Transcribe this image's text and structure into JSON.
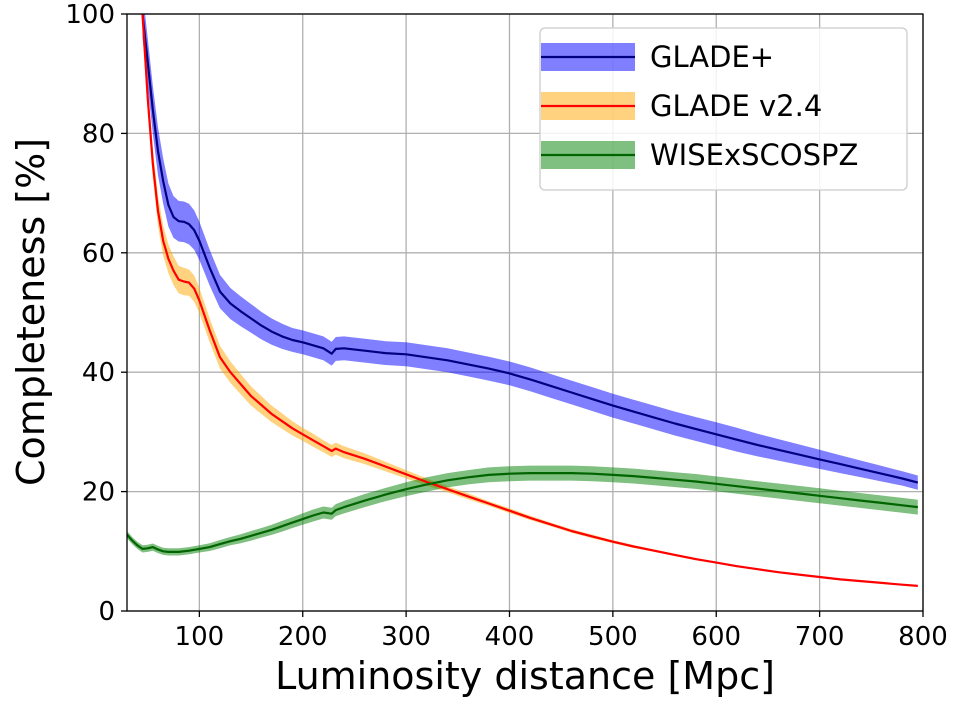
{
  "chart_data": {
    "type": "line",
    "xlabel": "Luminosity distance [Mpc]",
    "ylabel": "Completeness [%]",
    "xlim": [
      30,
      800
    ],
    "ylim": [
      0,
      100
    ],
    "x_ticks": [
      100,
      200,
      300,
      400,
      500,
      600,
      700,
      800
    ],
    "y_ticks": [
      0,
      20,
      40,
      60,
      80,
      100
    ],
    "grid": true,
    "legend_position": "top-right",
    "series": [
      {
        "name": "GLADE+",
        "line_color": "#000080",
        "band_color": "#0000ff",
        "band_opacity": 0.5,
        "x": [
          45,
          50,
          55,
          60,
          65,
          70,
          75,
          80,
          85,
          90,
          95,
          100,
          110,
          120,
          130,
          140,
          150,
          160,
          170,
          180,
          190,
          200,
          210,
          220,
          228,
          232,
          240,
          260,
          280,
          300,
          320,
          340,
          360,
          380,
          400,
          420,
          440,
          460,
          480,
          500,
          520,
          540,
          560,
          580,
          600,
          620,
          640,
          660,
          680,
          700,
          720,
          740,
          760,
          780,
          795
        ],
        "y": [
          100,
          92,
          84,
          77,
          72,
          68,
          66,
          65.3,
          65.2,
          64.8,
          63.8,
          62,
          57.5,
          53.5,
          51.5,
          50.2,
          49,
          47.8,
          46.8,
          46,
          45.4,
          45,
          44.5,
          44,
          43.1,
          43.9,
          44,
          43.6,
          43.2,
          43,
          42.5,
          42,
          41.3,
          40.6,
          39.8,
          38.8,
          37.7,
          36.6,
          35.5,
          34.4,
          33.4,
          32.4,
          31.4,
          30.5,
          29.6,
          28.7,
          27.8,
          27,
          26.2,
          25.4,
          24.6,
          23.8,
          23,
          22.2,
          21.5
        ],
        "band_halfwidth": [
          4,
          4,
          4,
          4,
          3.8,
          3.6,
          3.5,
          3.4,
          3.4,
          3.4,
          3.3,
          3.2,
          3,
          2.8,
          2.6,
          2.5,
          2.4,
          2.3,
          2.2,
          2.1,
          2,
          2,
          2,
          2,
          2,
          2,
          2,
          2,
          2,
          2,
          2,
          2,
          2,
          2,
          2,
          2,
          2,
          2,
          2,
          2,
          2,
          2,
          2,
          2,
          2,
          2,
          1.9,
          1.8,
          1.7,
          1.6,
          1.5,
          1.4,
          1.3,
          1.2,
          1.2
        ]
      },
      {
        "name": "GLADE v2.4",
        "line_color": "#ff0000",
        "band_color": "#ffa500",
        "band_opacity": 0.5,
        "x": [
          45,
          50,
          55,
          60,
          65,
          70,
          75,
          80,
          85,
          90,
          95,
          100,
          110,
          120,
          130,
          140,
          150,
          160,
          170,
          180,
          190,
          200,
          210,
          220,
          228,
          232,
          240,
          260,
          280,
          300,
          320,
          340,
          360,
          380,
          400,
          420,
          440,
          460,
          480,
          500,
          520,
          540,
          560,
          580,
          600,
          620,
          640,
          660,
          680,
          700,
          720,
          740,
          760,
          780,
          795
        ],
        "y": [
          100,
          86,
          75,
          67,
          62,
          59,
          57,
          55.5,
          55.2,
          55,
          54,
          52,
          47,
          42.5,
          40,
          38,
          36,
          34.5,
          33,
          31.8,
          30.6,
          29.6,
          28.6,
          27.6,
          26.8,
          27.2,
          26.6,
          25.5,
          24.2,
          22.9,
          21.6,
          20.4,
          19.2,
          18,
          16.8,
          15.6,
          14.5,
          13.4,
          12.5,
          11.6,
          10.8,
          10.1,
          9.4,
          8.7,
          8.1,
          7.5,
          7,
          6.5,
          6.1,
          5.7,
          5.3,
          5,
          4.7,
          4.4,
          4.2
        ],
        "band_halfwidth": [
          2.5,
          2.5,
          2.5,
          2.5,
          2.5,
          2.4,
          2.4,
          2.3,
          2.3,
          2.2,
          2.2,
          2.1,
          2,
          1.9,
          1.8,
          1.7,
          1.6,
          1.5,
          1.4,
          1.3,
          1.2,
          1.1,
          1.1,
          1,
          1,
          1,
          1,
          0.9,
          0.8,
          0.7,
          0.6,
          0.5,
          0.5,
          0.4,
          0.4,
          0.35,
          0.3,
          0.3,
          0.3,
          0.25,
          0.25,
          0.2,
          0.2,
          0.2,
          0.15,
          0.15,
          0.15,
          0.1,
          0.1,
          0.1,
          0.1,
          0.1,
          0.1,
          0.1,
          0.1
        ]
      },
      {
        "name": "WISExSCOSPZ",
        "line_color": "#006400",
        "band_color": "#008000",
        "band_opacity": 0.5,
        "x": [
          30,
          35,
          40,
          45,
          50,
          55,
          60,
          65,
          70,
          75,
          80,
          90,
          100,
          110,
          120,
          130,
          140,
          150,
          160,
          170,
          180,
          190,
          200,
          210,
          220,
          228,
          232,
          240,
          260,
          280,
          300,
          320,
          340,
          360,
          380,
          400,
          420,
          440,
          460,
          480,
          500,
          520,
          540,
          560,
          580,
          600,
          620,
          640,
          660,
          680,
          700,
          720,
          740,
          760,
          780,
          795
        ],
        "y": [
          12.8,
          11.8,
          11,
          10.4,
          10.5,
          10.7,
          10.3,
          10,
          9.9,
          9.9,
          9.9,
          10.1,
          10.4,
          10.7,
          11.2,
          11.7,
          12.1,
          12.6,
          13.1,
          13.6,
          14.2,
          14.8,
          15.4,
          16,
          16.5,
          16.3,
          16.9,
          17.4,
          18.5,
          19.5,
          20.4,
          21.2,
          21.9,
          22.4,
          22.8,
          23,
          23.1,
          23.1,
          23.1,
          23,
          22.8,
          22.6,
          22.3,
          22,
          21.7,
          21.3,
          20.9,
          20.5,
          20.1,
          19.7,
          19.3,
          18.9,
          18.5,
          18.1,
          17.7,
          17.4
        ],
        "band_halfwidth": [
          0.6,
          0.6,
          0.6,
          0.6,
          0.6,
          0.6,
          0.6,
          0.6,
          0.6,
          0.6,
          0.6,
          0.6,
          0.6,
          0.65,
          0.7,
          0.7,
          0.75,
          0.8,
          0.8,
          0.85,
          0.9,
          0.9,
          0.95,
          1,
          1,
          1,
          1,
          1.05,
          1.1,
          1.1,
          1.15,
          1.2,
          1.2,
          1.2,
          1.25,
          1.25,
          1.25,
          1.25,
          1.25,
          1.25,
          1.25,
          1.25,
          1.25,
          1.25,
          1.25,
          1.25,
          1.25,
          1.25,
          1.25,
          1.25,
          1.25,
          1.25,
          1.25,
          1.25,
          1.25,
          1.25
        ]
      }
    ]
  }
}
